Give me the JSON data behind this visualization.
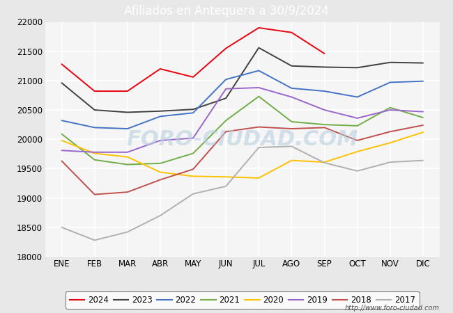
{
  "title": "Afiliados en Antequera a 30/9/2024",
  "title_color": "white",
  "title_bg": "#5b9bd5",
  "months": [
    "ENE",
    "FEB",
    "MAR",
    "ABR",
    "MAY",
    "JUN",
    "JUL",
    "AGO",
    "SEP",
    "OCT",
    "NOV",
    "DIC"
  ],
  "ylim": [
    18000,
    22000
  ],
  "yticks": [
    18000,
    18500,
    19000,
    19500,
    20000,
    20500,
    21000,
    21500,
    22000
  ],
  "series": {
    "2024": {
      "color": "#e8000d",
      "data": [
        21280,
        20820,
        20820,
        21200,
        21060,
        21550,
        21900,
        21820,
        21460,
        null,
        null,
        null
      ]
    },
    "2023": {
      "color": "#404040",
      "data": [
        20960,
        20500,
        20460,
        20480,
        20510,
        20700,
        21560,
        21250,
        21230,
        21220,
        21310,
        21300
      ]
    },
    "2022": {
      "color": "#4472c4",
      "data": [
        20320,
        20200,
        20180,
        20390,
        20450,
        21020,
        21170,
        20870,
        20820,
        20720,
        20970,
        20990
      ]
    },
    "2021": {
      "color": "#70ad47",
      "data": [
        20090,
        19650,
        19570,
        19590,
        19760,
        20320,
        20730,
        20300,
        20250,
        20230,
        20540,
        20370
      ]
    },
    "2020": {
      "color": "#ffc000",
      "data": [
        19980,
        19760,
        19700,
        19440,
        19370,
        19360,
        19340,
        19640,
        19610,
        19790,
        19940,
        20120
      ]
    },
    "2019": {
      "color": "#9966cc",
      "data": [
        19810,
        19780,
        19780,
        19980,
        20020,
        20860,
        20880,
        20720,
        20500,
        20360,
        20500,
        20470
      ]
    },
    "2018": {
      "color": "#c0504d",
      "data": [
        19630,
        19060,
        19100,
        19310,
        19490,
        20130,
        20210,
        20180,
        20200,
        19980,
        20130,
        20240
      ]
    },
    "2017": {
      "color": "#b0b0b0",
      "data": [
        18500,
        18280,
        18420,
        18700,
        19070,
        19200,
        19860,
        19880,
        19600,
        19460,
        19610,
        19640
      ]
    }
  },
  "legend_order": [
    "2024",
    "2023",
    "2022",
    "2021",
    "2020",
    "2019",
    "2018",
    "2017"
  ],
  "watermark": "FORO-CIUDAD.COM",
  "url": "http://www.foro-ciudad.com",
  "outer_bg": "#e8e8e8",
  "plot_bg": "#f5f5f5",
  "grid_color": "white",
  "tick_fontsize": 8.5,
  "legend_fontsize": 8.5
}
